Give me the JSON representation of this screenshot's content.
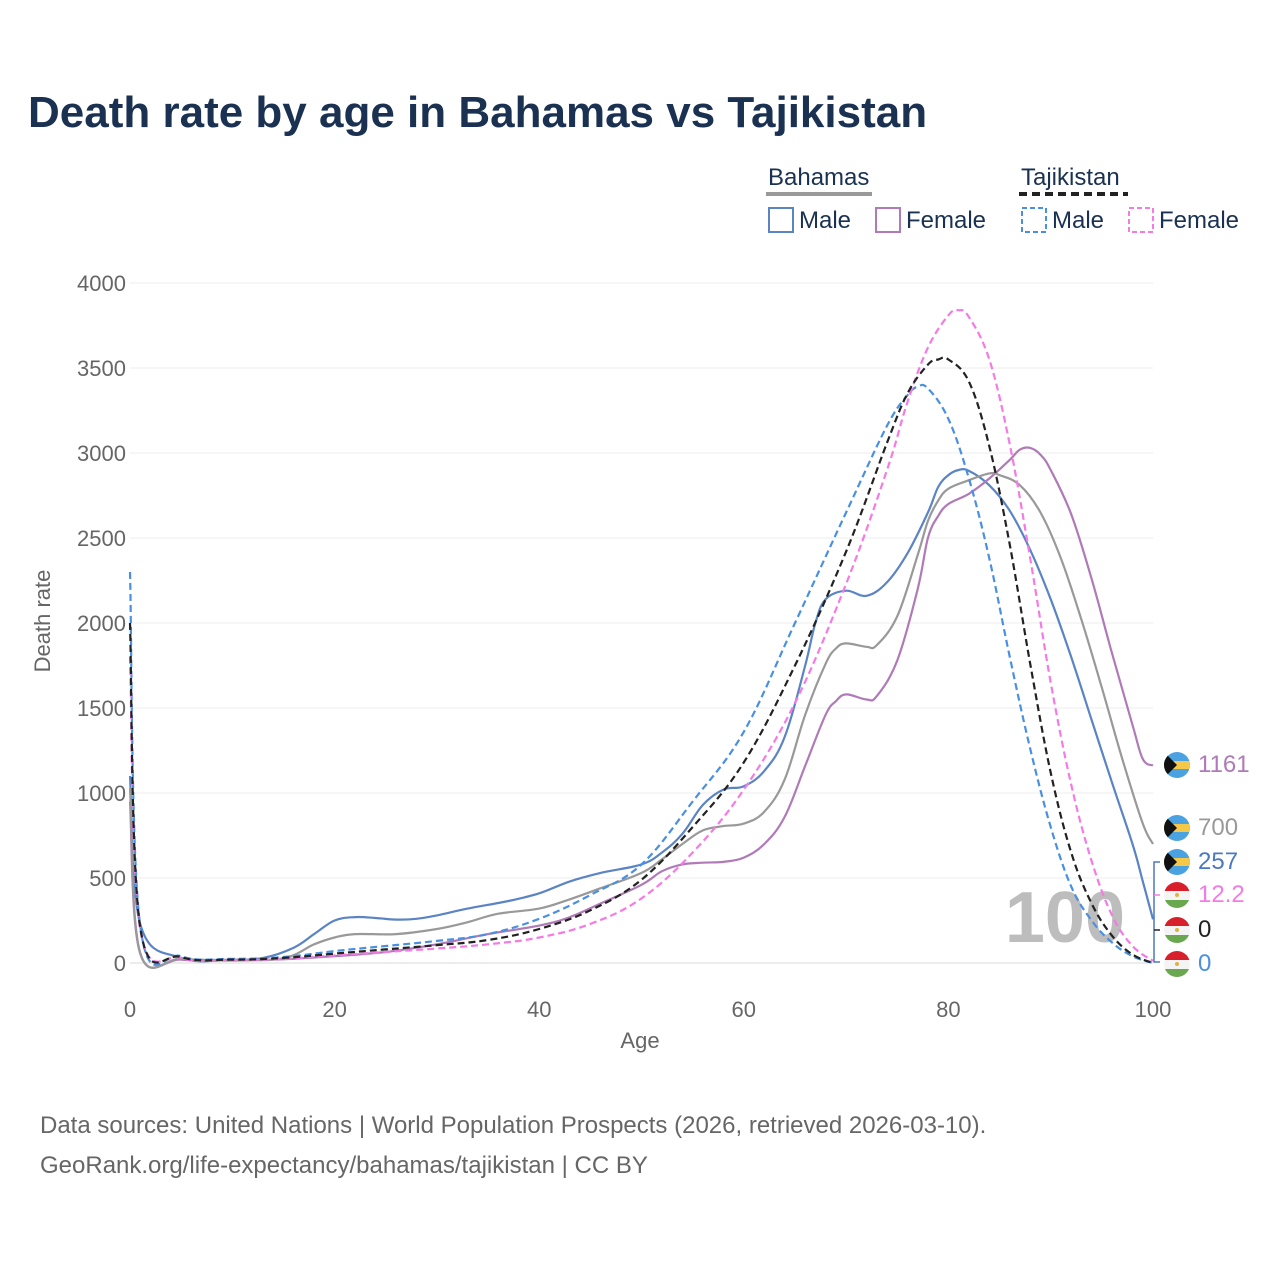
{
  "title": "Death rate by age in Bahamas vs Tajikistan",
  "legend": {
    "groups": [
      {
        "name": "Bahamas",
        "style": "solid",
        "color": "#999999",
        "items": [
          "Male",
          "Female"
        ]
      },
      {
        "name": "Tajikistan",
        "style": "dashed",
        "color": "#222222",
        "items": [
          "Male",
          "Female"
        ]
      }
    ]
  },
  "watermark": "100",
  "footer": {
    "line1": "Data sources: United Nations | World Population Prospects (2026, retrieved 2026-03-10).",
    "line2": "GeoRank.org/life-expectancy/bahamas/tajikistan | CC BY"
  },
  "chart_data": {
    "type": "line",
    "title": "Death rate by age in Bahamas vs Tajikistan",
    "xlabel": "Age",
    "ylabel": "Death rate",
    "xlim": [
      0,
      100
    ],
    "ylim": [
      0,
      4000
    ],
    "xticks": [
      0,
      20,
      40,
      60,
      80,
      100
    ],
    "yticks": [
      0,
      500,
      1000,
      1500,
      2000,
      2500,
      3000,
      3500,
      4000
    ],
    "grid": true,
    "series": [
      {
        "name": "Bahamas Male",
        "country": "Bahamas",
        "sex": "Male",
        "style": "solid",
        "color": "#5b84c4",
        "end_label": "257",
        "label_color": "#4a78c2",
        "points": [
          [
            0,
            1100
          ],
          [
            1,
            230
          ],
          [
            5,
            30
          ],
          [
            10,
            20
          ],
          [
            13,
            30
          ],
          [
            16,
            90
          ],
          [
            18,
            170
          ],
          [
            20,
            250
          ],
          [
            22,
            270
          ],
          [
            24,
            265
          ],
          [
            26,
            255
          ],
          [
            28,
            260
          ],
          [
            30,
            280
          ],
          [
            33,
            320
          ],
          [
            37,
            365
          ],
          [
            40,
            410
          ],
          [
            43,
            480
          ],
          [
            46,
            530
          ],
          [
            50,
            580
          ],
          [
            52,
            650
          ],
          [
            54,
            760
          ],
          [
            56,
            930
          ],
          [
            58,
            1020
          ],
          [
            60,
            1040
          ],
          [
            62,
            1130
          ],
          [
            64,
            1330
          ],
          [
            66,
            1750
          ],
          [
            67,
            2000
          ],
          [
            68,
            2140
          ],
          [
            70,
            2190
          ],
          [
            72,
            2160
          ],
          [
            74,
            2240
          ],
          [
            76,
            2410
          ],
          [
            78,
            2650
          ],
          [
            79,
            2800
          ],
          [
            80,
            2870
          ],
          [
            81,
            2900
          ],
          [
            82,
            2895
          ],
          [
            84,
            2810
          ],
          [
            86,
            2660
          ],
          [
            88,
            2430
          ],
          [
            90,
            2140
          ],
          [
            92,
            1800
          ],
          [
            94,
            1430
          ],
          [
            96,
            1060
          ],
          [
            98,
            700
          ],
          [
            99,
            480
          ],
          [
            100,
            257
          ]
        ]
      },
      {
        "name": "Bahamas Female",
        "country": "Bahamas",
        "sex": "Female",
        "style": "solid",
        "color": "#b07ab8",
        "end_label": "1161",
        "label_color": "#b07ab8",
        "points": [
          [
            0,
            950
          ],
          [
            1,
            55
          ],
          [
            5,
            20
          ],
          [
            10,
            15
          ],
          [
            15,
            22
          ],
          [
            20,
            40
          ],
          [
            25,
            65
          ],
          [
            30,
            110
          ],
          [
            35,
            170
          ],
          [
            40,
            220
          ],
          [
            43,
            270
          ],
          [
            46,
            350
          ],
          [
            50,
            460
          ],
          [
            52,
            540
          ],
          [
            54,
            580
          ],
          [
            56,
            590
          ],
          [
            58,
            595
          ],
          [
            60,
            620
          ],
          [
            62,
            700
          ],
          [
            64,
            860
          ],
          [
            66,
            1160
          ],
          [
            68,
            1460
          ],
          [
            69,
            1540
          ],
          [
            70,
            1580
          ],
          [
            72,
            1550
          ],
          [
            73,
            1570
          ],
          [
            75,
            1780
          ],
          [
            77,
            2200
          ],
          [
            78,
            2500
          ],
          [
            79,
            2630
          ],
          [
            80,
            2700
          ],
          [
            82,
            2760
          ],
          [
            84,
            2850
          ],
          [
            86,
            2960
          ],
          [
            87,
            3020
          ],
          [
            88,
            3030
          ],
          [
            89,
            2990
          ],
          [
            90,
            2900
          ],
          [
            92,
            2640
          ],
          [
            94,
            2260
          ],
          [
            96,
            1820
          ],
          [
            98,
            1400
          ],
          [
            99,
            1200
          ],
          [
            100,
            1161
          ]
        ]
      },
      {
        "name": "Bahamas Total",
        "country": "Bahamas",
        "sex": "Total",
        "style": "solid",
        "color": "#999999",
        "end_label": "700",
        "label_color": "#999999",
        "points": [
          [
            0,
            1030
          ],
          [
            1,
            60
          ],
          [
            5,
            25
          ],
          [
            10,
            18
          ],
          [
            15,
            28
          ],
          [
            18,
            110
          ],
          [
            20,
            150
          ],
          [
            22,
            170
          ],
          [
            26,
            170
          ],
          [
            30,
            200
          ],
          [
            33,
            240
          ],
          [
            36,
            290
          ],
          [
            40,
            320
          ],
          [
            43,
            375
          ],
          [
            46,
            440
          ],
          [
            50,
            530
          ],
          [
            52,
            610
          ],
          [
            54,
            700
          ],
          [
            56,
            780
          ],
          [
            58,
            805
          ],
          [
            60,
            820
          ],
          [
            62,
            890
          ],
          [
            64,
            1080
          ],
          [
            66,
            1460
          ],
          [
            68,
            1760
          ],
          [
            69,
            1850
          ],
          [
            70,
            1880
          ],
          [
            72,
            1860
          ],
          [
            73,
            1870
          ],
          [
            75,
            2040
          ],
          [
            77,
            2400
          ],
          [
            78,
            2600
          ],
          [
            79,
            2720
          ],
          [
            80,
            2790
          ],
          [
            82,
            2840
          ],
          [
            84,
            2880
          ],
          [
            85,
            2870
          ],
          [
            87,
            2810
          ],
          [
            89,
            2650
          ],
          [
            91,
            2380
          ],
          [
            93,
            2020
          ],
          [
            95,
            1620
          ],
          [
            97,
            1200
          ],
          [
            99,
            820
          ],
          [
            100,
            700
          ]
        ]
      },
      {
        "name": "Tajikistan Male",
        "country": "Tajikistan",
        "sex": "Male",
        "style": "dashed",
        "color": "#4a90e2",
        "end_label": "0",
        "label_color": "#4a90e2",
        "points": [
          [
            0,
            2300
          ],
          [
            1,
            220
          ],
          [
            5,
            40
          ],
          [
            10,
            25
          ],
          [
            15,
            35
          ],
          [
            20,
            70
          ],
          [
            25,
            100
          ],
          [
            30,
            130
          ],
          [
            35,
            170
          ],
          [
            40,
            260
          ],
          [
            45,
            400
          ],
          [
            50,
            580
          ],
          [
            55,
            950
          ],
          [
            60,
            1360
          ],
          [
            65,
            2000
          ],
          [
            70,
            2650
          ],
          [
            74,
            3160
          ],
          [
            76,
            3340
          ],
          [
            77,
            3390
          ],
          [
            78,
            3380
          ],
          [
            80,
            3200
          ],
          [
            82,
            2850
          ],
          [
            84,
            2380
          ],
          [
            86,
            1800
          ],
          [
            88,
            1260
          ],
          [
            90,
            800
          ],
          [
            92,
            450
          ],
          [
            94,
            250
          ],
          [
            96,
            120
          ],
          [
            98,
            40
          ],
          [
            100,
            0
          ]
        ]
      },
      {
        "name": "Tajikistan Female",
        "country": "Tajikistan",
        "sex": "Female",
        "style": "dashed",
        "color": "#f47ae6",
        "end_label": "12.2",
        "label_color": "#f47ae6",
        "points": [
          [
            0,
            1800
          ],
          [
            1,
            200
          ],
          [
            5,
            30
          ],
          [
            10,
            18
          ],
          [
            15,
            25
          ],
          [
            20,
            45
          ],
          [
            25,
            65
          ],
          [
            30,
            85
          ],
          [
            35,
            110
          ],
          [
            40,
            150
          ],
          [
            45,
            230
          ],
          [
            50,
            380
          ],
          [
            55,
            650
          ],
          [
            60,
            1020
          ],
          [
            65,
            1530
          ],
          [
            70,
            2230
          ],
          [
            74,
            2900
          ],
          [
            76,
            3300
          ],
          [
            78,
            3620
          ],
          [
            80,
            3810
          ],
          [
            81,
            3840
          ],
          [
            82,
            3800
          ],
          [
            84,
            3550
          ],
          [
            86,
            3050
          ],
          [
            88,
            2380
          ],
          [
            90,
            1650
          ],
          [
            92,
            1050
          ],
          [
            94,
            600
          ],
          [
            96,
            280
          ],
          [
            98,
            100
          ],
          [
            100,
            12.2
          ]
        ]
      },
      {
        "name": "Tajikistan Total",
        "country": "Tajikistan",
        "sex": "Total",
        "style": "dashed",
        "color": "#222222",
        "end_label": "0",
        "label_color": "#222222",
        "points": [
          [
            0,
            2000
          ],
          [
            1,
            210
          ],
          [
            5,
            35
          ],
          [
            10,
            20
          ],
          [
            15,
            30
          ],
          [
            20,
            55
          ],
          [
            25,
            80
          ],
          [
            30,
            105
          ],
          [
            35,
            135
          ],
          [
            40,
            200
          ],
          [
            45,
            310
          ],
          [
            50,
            490
          ],
          [
            55,
            800
          ],
          [
            60,
            1180
          ],
          [
            65,
            1750
          ],
          [
            70,
            2420
          ],
          [
            74,
            3060
          ],
          [
            76,
            3350
          ],
          [
            78,
            3520
          ],
          [
            79,
            3550
          ],
          [
            80,
            3550
          ],
          [
            82,
            3420
          ],
          [
            84,
            3040
          ],
          [
            86,
            2460
          ],
          [
            88,
            1760
          ],
          [
            90,
            1120
          ],
          [
            92,
            650
          ],
          [
            94,
            350
          ],
          [
            96,
            160
          ],
          [
            98,
            50
          ],
          [
            100,
            0
          ]
        ]
      }
    ]
  }
}
